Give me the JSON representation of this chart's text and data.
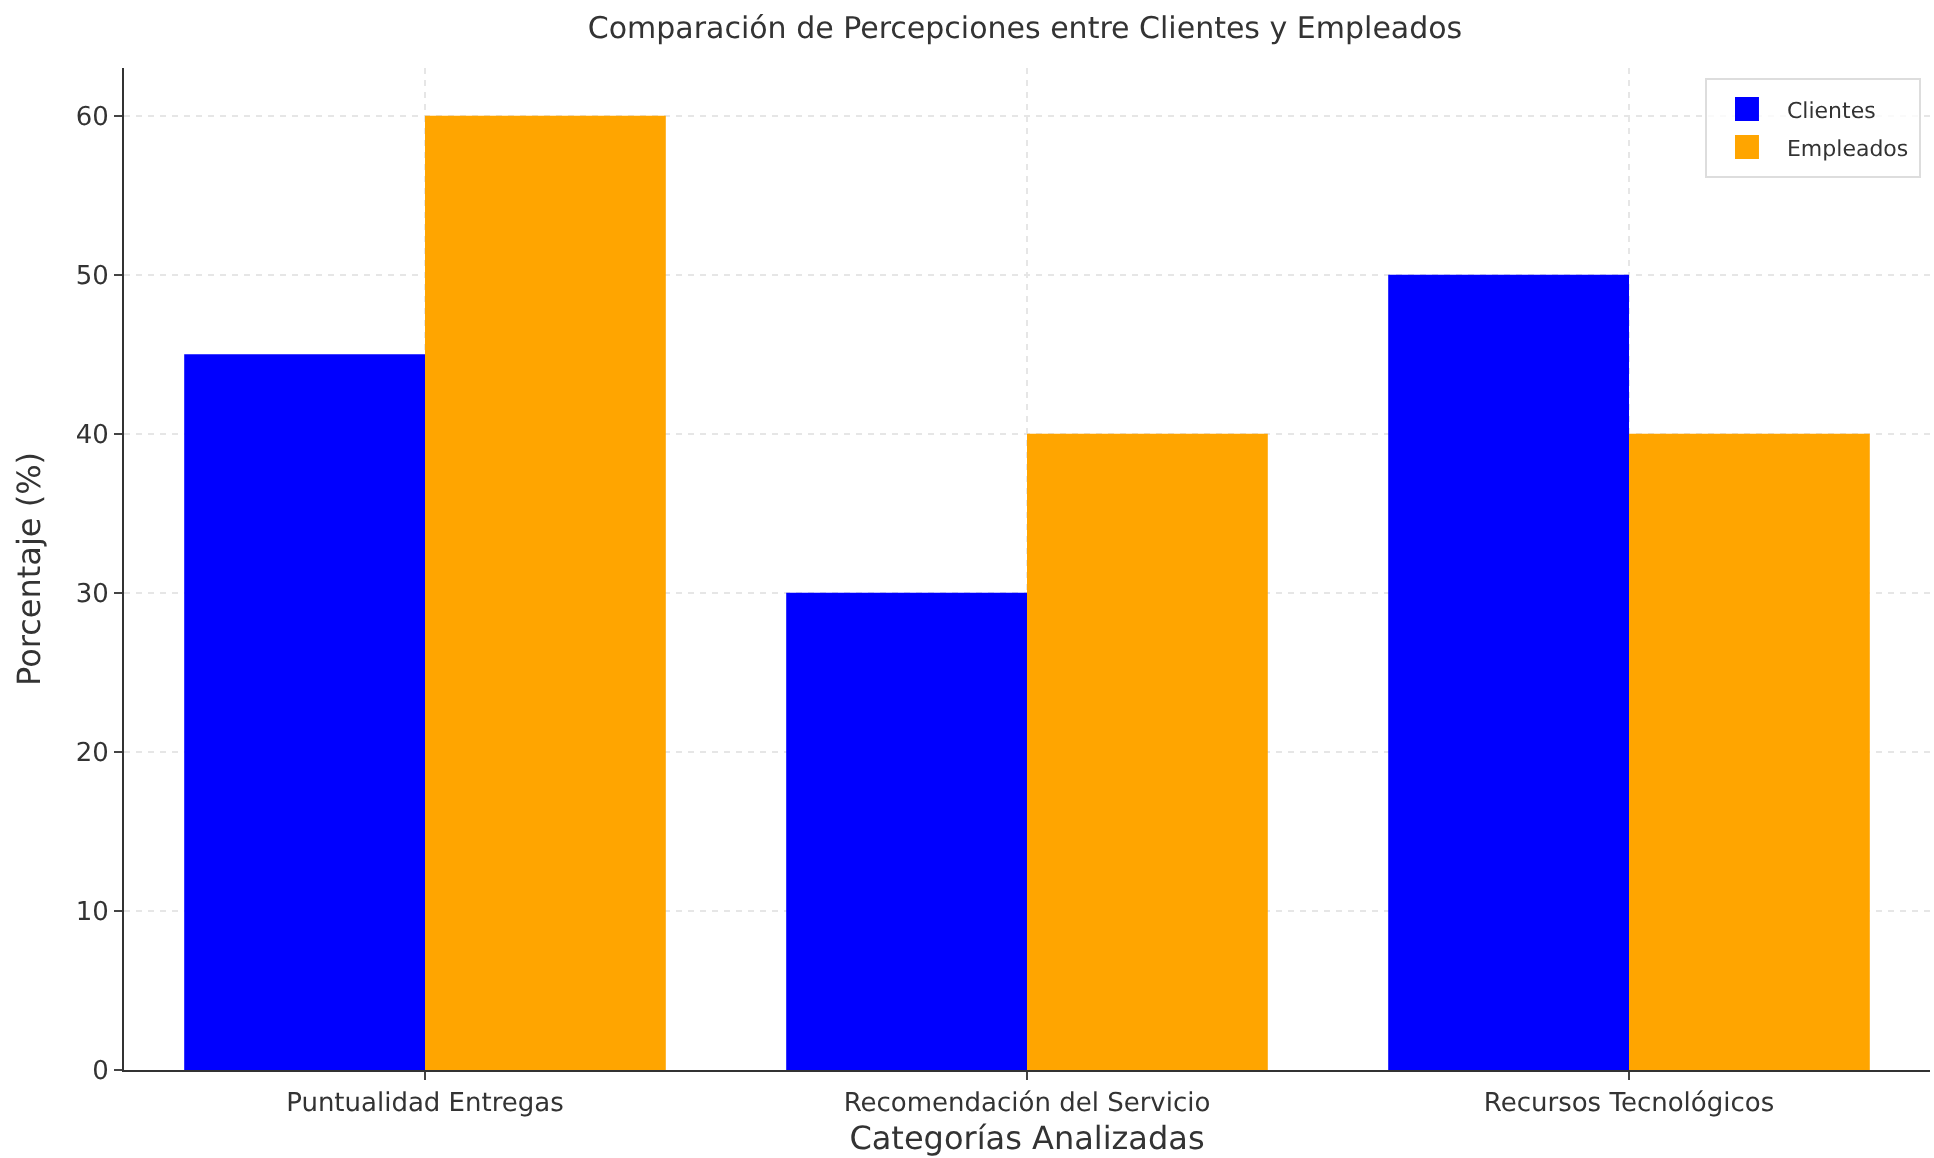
{
  "chart_data": {
    "type": "bar",
    "title": "Comparación de Percepciones entre Clientes y Empleados",
    "xlabel": "Categorías Analizadas",
    "ylabel": "Porcentaje (%)",
    "categories": [
      "Puntualidad Entregas",
      "Recomendación del Servicio",
      "Recursos Tecnológicos"
    ],
    "series": [
      {
        "name": "Clientes",
        "color": "#0000ff",
        "values": [
          45,
          30,
          50
        ]
      },
      {
        "name": "Empleados",
        "color": "#ffa500",
        "values": [
          60,
          40,
          40
        ]
      }
    ],
    "ylim": [
      0,
      63
    ],
    "yticks": [
      0,
      10,
      20,
      30,
      40,
      50,
      60
    ],
    "grid": true,
    "legend": "top right"
  }
}
